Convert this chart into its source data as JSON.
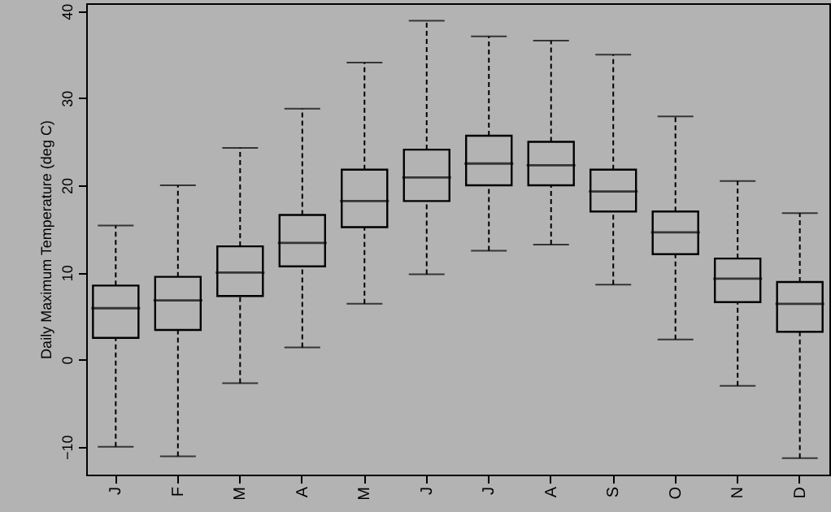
{
  "chart_data": {
    "type": "box",
    "ylabel": "Daily Maximum Temperature (deg C)",
    "categories": [
      "J",
      "F",
      "M",
      "A",
      "M",
      "J",
      "J",
      "A",
      "S",
      "O",
      "N",
      "D"
    ],
    "boxes": [
      {
        "low": -10.0,
        "q1": 2.5,
        "median": 5.9,
        "q3": 8.5,
        "high": 15.4
      },
      {
        "low": -11.1,
        "q1": 3.4,
        "median": 6.8,
        "q3": 9.5,
        "high": 20.0
      },
      {
        "low": -2.7,
        "q1": 7.3,
        "median": 10.0,
        "q3": 13.0,
        "high": 24.3
      },
      {
        "low": 1.4,
        "q1": 10.7,
        "median": 13.4,
        "q3": 16.6,
        "high": 28.8
      },
      {
        "low": 6.4,
        "q1": 15.2,
        "median": 18.2,
        "q3": 21.8,
        "high": 34.1
      },
      {
        "low": 9.8,
        "q1": 18.2,
        "median": 20.9,
        "q3": 24.1,
        "high": 38.9
      },
      {
        "low": 12.5,
        "q1": 20.0,
        "median": 22.5,
        "q3": 25.7,
        "high": 37.1
      },
      {
        "low": 13.2,
        "q1": 20.0,
        "median": 22.3,
        "q3": 25.0,
        "high": 36.6
      },
      {
        "low": 8.6,
        "q1": 17.0,
        "median": 19.3,
        "q3": 21.8,
        "high": 35.0
      },
      {
        "low": 2.3,
        "q1": 12.1,
        "median": 14.6,
        "q3": 17.0,
        "high": 27.9
      },
      {
        "low": -3.0,
        "q1": 6.6,
        "median": 9.3,
        "q3": 11.6,
        "high": 20.5
      },
      {
        "low": -11.3,
        "q1": 3.2,
        "median": 6.4,
        "q3": 8.9,
        "high": 16.8
      }
    ],
    "ylim": [
      -13.2,
      40.9
    ],
    "yticks": [
      -10,
      0,
      10,
      20,
      30,
      40
    ],
    "color": "#000000",
    "line_style": "dashed",
    "grid": false
  }
}
